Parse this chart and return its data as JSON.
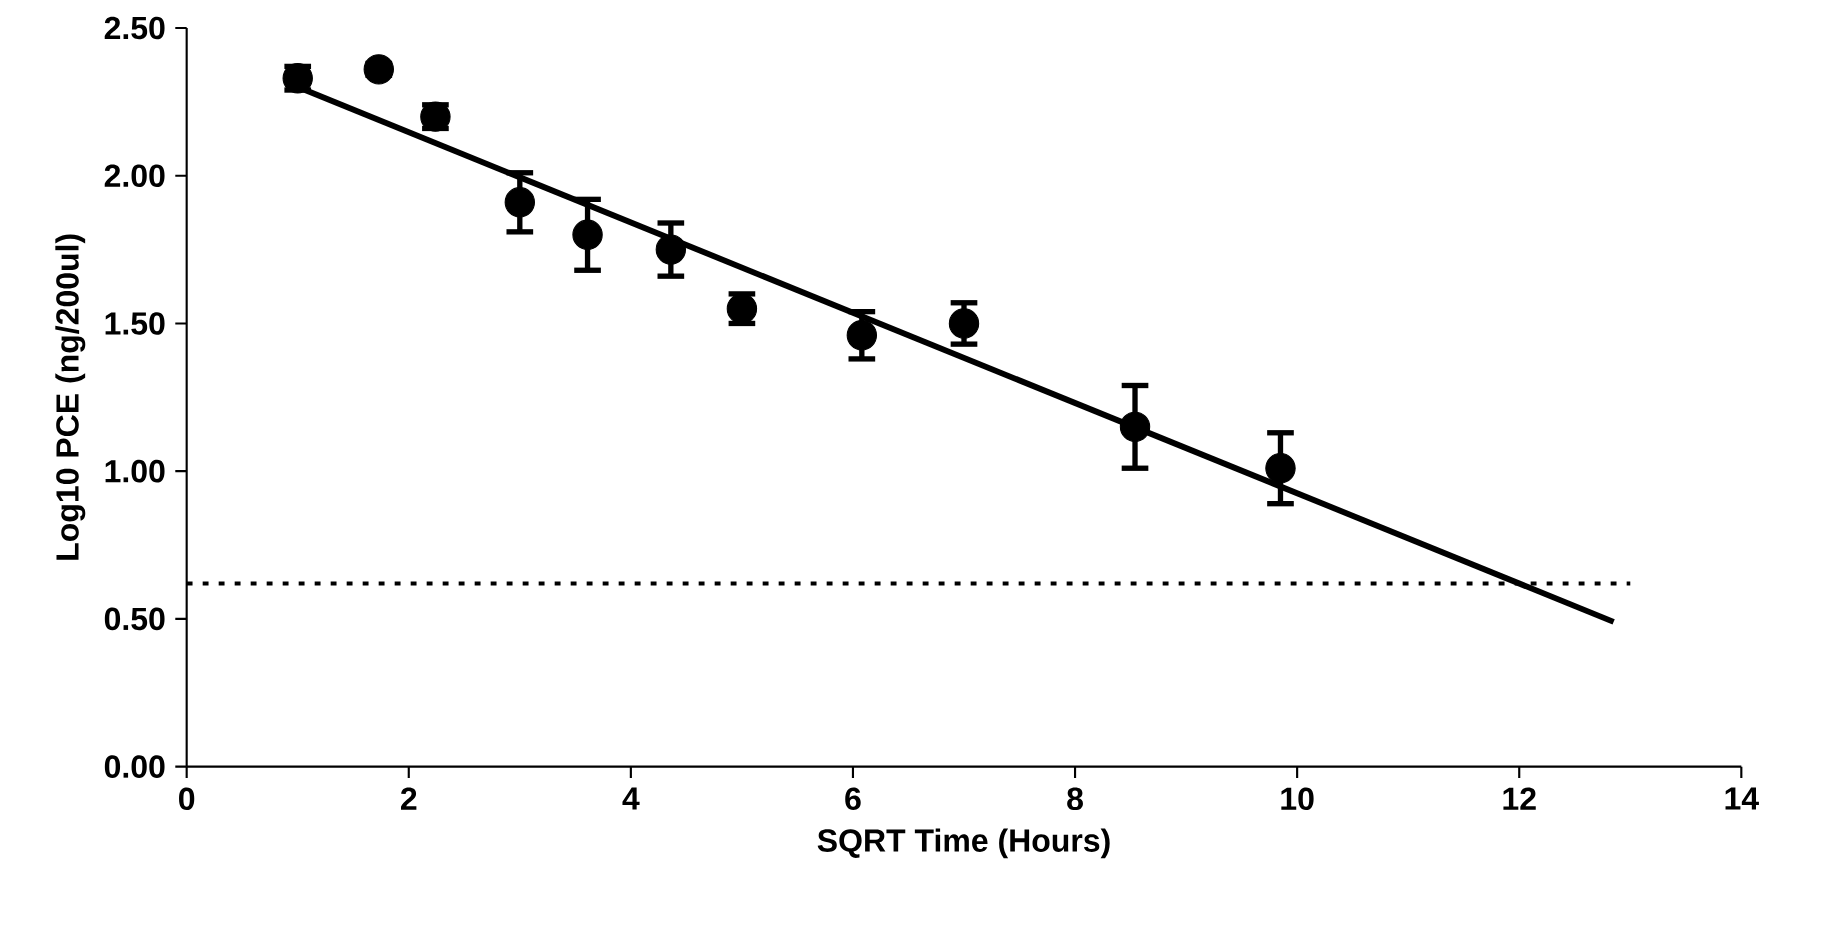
{
  "chart_data": {
    "type": "scatter",
    "xlabel": "SQRT Time (Hours)",
    "ylabel": "Log10 PCE (ng/200ul)",
    "xlim": [
      0,
      14
    ],
    "xticks": [
      0,
      2,
      4,
      6,
      8,
      10,
      12,
      14
    ],
    "ylim": [
      0,
      2.5
    ],
    "yticks": [
      {
        "value": 0,
        "label": "0.00"
      },
      {
        "value": 0.5,
        "label": "0.50"
      },
      {
        "value": 1.0,
        "label": "1.00"
      },
      {
        "value": 1.5,
        "label": "1.50"
      },
      {
        "value": 2.0,
        "label": "2.00"
      },
      {
        "value": 2.5,
        "label": "2.50"
      }
    ],
    "grid": false,
    "series": [
      {
        "color": "#000000",
        "marker": "circle",
        "x": [
          1.0,
          1.73,
          2.24,
          3.0,
          3.61,
          4.36,
          5.0,
          6.08,
          7.0,
          8.54,
          9.85
        ],
        "values": [
          2.33,
          2.36,
          2.2,
          1.91,
          1.8,
          1.75,
          1.55,
          1.46,
          1.5,
          1.15,
          1.01
        ],
        "errors": [
          0.04,
          0.02,
          0.04,
          0.1,
          0.12,
          0.09,
          0.05,
          0.08,
          0.07,
          0.14,
          0.12
        ]
      },
      {
        "type": "line",
        "color": "#000000",
        "marker": "none",
        "line_style": "solid",
        "x": [
          1.0,
          12.85
        ],
        "values": [
          2.3,
          0.49
        ]
      }
    ],
    "ref_lines": [
      {
        "axis": "y",
        "value": 0.62,
        "color": "#000000",
        "line_style": "dotted"
      }
    ]
  }
}
